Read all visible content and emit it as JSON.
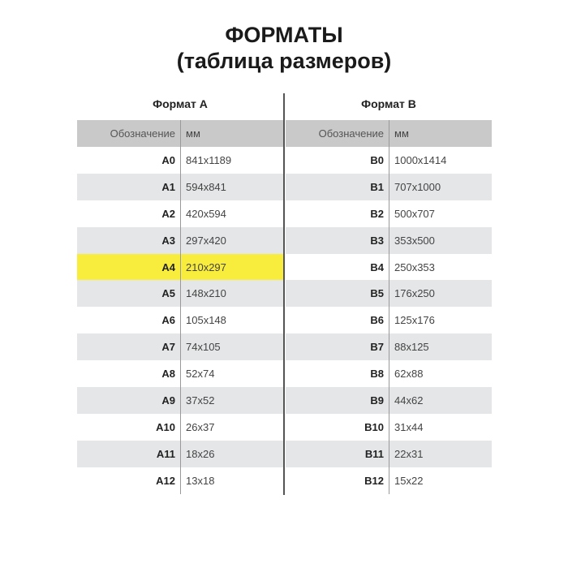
{
  "title": [
    "ФОРМАТЫ",
    "(таблица размеров)"
  ],
  "tables": [
    {
      "caption": "Формат А",
      "headers": [
        "Обозначение",
        "мм"
      ],
      "highlight": "A4",
      "highlight_color": "#f8ec3c",
      "rows": [
        [
          "A0",
          "841x1189"
        ],
        [
          "A1",
          "594x841"
        ],
        [
          "A2",
          "420x594"
        ],
        [
          "A3",
          "297x420"
        ],
        [
          "A4",
          "210x297"
        ],
        [
          "A5",
          "148x210"
        ],
        [
          "A6",
          "105x148"
        ],
        [
          "A7",
          "74x105"
        ],
        [
          "A8",
          "52x74"
        ],
        [
          "A9",
          "37x52"
        ],
        [
          "A10",
          "26x37"
        ],
        [
          "A11",
          "18x26"
        ],
        [
          "A12",
          "13x18"
        ]
      ]
    },
    {
      "caption": "Формат В",
      "headers": [
        "Обозначение",
        "мм"
      ],
      "rows": [
        [
          "B0",
          "1000x1414"
        ],
        [
          "B1",
          "707x1000"
        ],
        [
          "B2",
          "500x707"
        ],
        [
          "B3",
          "353x500"
        ],
        [
          "B4",
          "250x353"
        ],
        [
          "B5",
          "176x250"
        ],
        [
          "B6",
          "125x176"
        ],
        [
          "B7",
          "88x125"
        ],
        [
          "B8",
          "62x88"
        ],
        [
          "B9",
          "44x62"
        ],
        [
          "B10",
          "31x44"
        ],
        [
          "B11",
          "22x31"
        ],
        [
          "B12",
          "15x22"
        ]
      ]
    }
  ]
}
